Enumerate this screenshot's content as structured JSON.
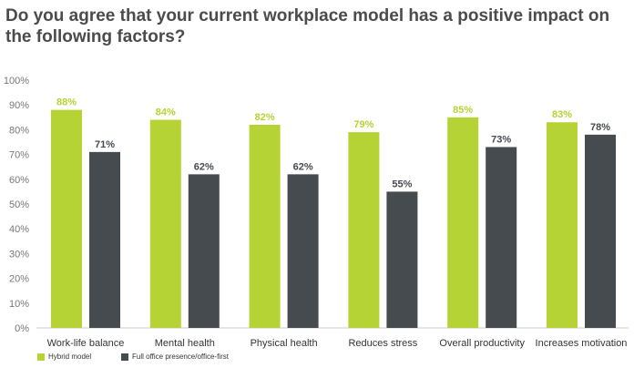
{
  "chart_data": {
    "type": "bar",
    "title": "Do you agree that your current workplace model has a positive impact on the following factors?",
    "categories": [
      "Work-life balance",
      "Mental health",
      "Physical health",
      "Reduces stress",
      "Overall productivity",
      "Increases motivation"
    ],
    "series": [
      {
        "name": "Hybrid model",
        "values": [
          88,
          84,
          82,
          79,
          85,
          83
        ],
        "color": "#b5d334"
      },
      {
        "name": "Full office presence/office-first",
        "values": [
          71,
          62,
          62,
          55,
          73,
          78
        ],
        "color": "#464b50"
      }
    ],
    "ylim": [
      0,
      100
    ],
    "yticks": [
      "0%",
      "10%",
      "20%",
      "30%",
      "40%",
      "50%",
      "60%",
      "70%",
      "80%",
      "90%",
      "100%"
    ],
    "grid": false,
    "legend": "bottom-left"
  }
}
